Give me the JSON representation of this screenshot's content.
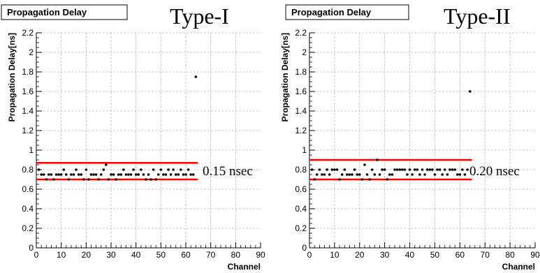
{
  "chart_data": [
    {
      "type": "scatter",
      "title": "Propagation Delay",
      "panel_label": "Type-I",
      "xlabel": "Channel",
      "ylabel": "Propagation Delay[ns]",
      "xlim": [
        0,
        90
      ],
      "ylim": [
        0,
        2.2
      ],
      "xticks": [
        "0",
        "10",
        "20",
        "30",
        "40",
        "50",
        "60",
        "70",
        "80",
        "90"
      ],
      "yticks": [
        "0",
        "0.2",
        "0.4",
        "0.6",
        "0.8",
        "1",
        "1.2",
        "1.4",
        "1.6",
        "1.8",
        "2",
        "2.2"
      ],
      "grid": true,
      "x": [
        1,
        2,
        3,
        4,
        5,
        6,
        7,
        8,
        9,
        10,
        11,
        12,
        13,
        14,
        15,
        16,
        17,
        18,
        19,
        20,
        21,
        22,
        23,
        24,
        25,
        26,
        27,
        28,
        29,
        30,
        31,
        32,
        33,
        34,
        35,
        36,
        37,
        38,
        39,
        40,
        41,
        42,
        43,
        44,
        45,
        46,
        47,
        48,
        49,
        50,
        51,
        52,
        53,
        54,
        55,
        56,
        57,
        58,
        59,
        60,
        61,
        62,
        63,
        64
      ],
      "y": [
        0.8,
        0.75,
        0.75,
        0.7,
        0.75,
        0.75,
        0.7,
        0.75,
        0.75,
        0.75,
        0.8,
        0.75,
        0.7,
        0.75,
        0.75,
        0.8,
        0.75,
        0.75,
        0.7,
        0.8,
        0.7,
        0.75,
        0.75,
        0.75,
        0.7,
        0.75,
        0.8,
        0.85,
        0.7,
        0.75,
        0.75,
        0.7,
        0.75,
        0.75,
        0.8,
        0.75,
        0.75,
        0.75,
        0.8,
        0.75,
        0.75,
        0.8,
        0.75,
        0.7,
        0.75,
        0.7,
        0.8,
        0.7,
        0.75,
        0.8,
        0.75,
        0.75,
        0.8,
        0.75,
        0.8,
        0.75,
        0.75,
        0.8,
        0.75,
        0.75,
        0.8,
        0.75,
        0.75,
        1.75
      ],
      "threshold_lines": [
        0.87,
        0.7
      ],
      "line_color": "#ff0000",
      "annotation": "0.15 nsec"
    },
    {
      "type": "scatter",
      "title": "Propagation Delay",
      "panel_label": "Type-II",
      "xlabel": "Channel",
      "ylabel": "Propagation Delay[ns]",
      "xlim": [
        0,
        90
      ],
      "ylim": [
        0,
        2.2
      ],
      "xticks": [
        "0",
        "10",
        "20",
        "30",
        "40",
        "50",
        "60",
        "70",
        "80",
        "90"
      ],
      "yticks": [
        "0",
        "0.2",
        "0.4",
        "0.6",
        "0.8",
        "1",
        "1.2",
        "1.4",
        "1.6",
        "1.8",
        "2",
        "2.2"
      ],
      "grid": true,
      "x": [
        1,
        2,
        3,
        4,
        5,
        6,
        7,
        8,
        9,
        10,
        11,
        12,
        13,
        14,
        15,
        16,
        17,
        18,
        19,
        20,
        21,
        22,
        23,
        24,
        25,
        26,
        27,
        28,
        29,
        30,
        31,
        32,
        33,
        34,
        35,
        36,
        37,
        38,
        39,
        40,
        41,
        42,
        43,
        44,
        45,
        46,
        47,
        48,
        49,
        50,
        51,
        52,
        53,
        54,
        55,
        56,
        57,
        58,
        59,
        60,
        61,
        62,
        63,
        64
      ],
      "y": [
        0.8,
        0.7,
        0.75,
        0.8,
        0.75,
        0.75,
        0.8,
        0.75,
        0.8,
        0.8,
        0.8,
        0.7,
        0.75,
        0.8,
        0.75,
        0.75,
        0.75,
        0.8,
        0.75,
        0.75,
        0.7,
        0.85,
        0.75,
        0.7,
        0.8,
        0.75,
        0.9,
        0.75,
        0.8,
        0.8,
        0.7,
        0.75,
        0.75,
        0.8,
        0.8,
        0.8,
        0.8,
        0.8,
        0.75,
        0.8,
        0.75,
        0.8,
        0.8,
        0.75,
        0.8,
        0.75,
        0.8,
        0.8,
        0.8,
        0.75,
        0.8,
        0.8,
        0.75,
        0.8,
        0.75,
        0.8,
        0.8,
        0.8,
        0.75,
        0.75,
        0.8,
        0.75,
        0.8,
        1.6
      ],
      "threshold_lines": [
        0.9,
        0.7
      ],
      "line_color": "#ff0000",
      "annotation": "0.20 nsec"
    }
  ]
}
